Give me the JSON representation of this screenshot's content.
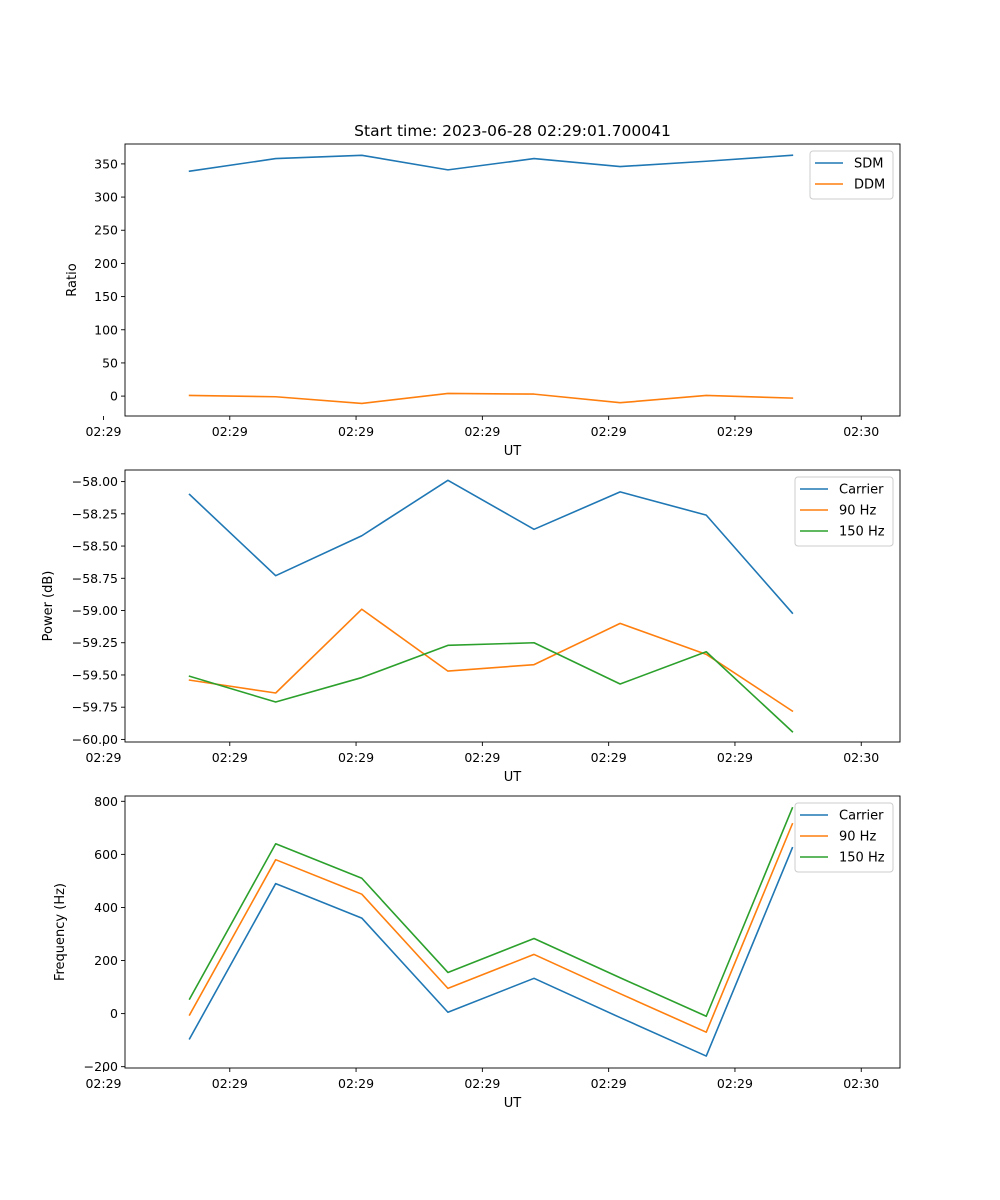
{
  "figure": {
    "title": "Start time: 2023-06-28 02:29:01.700041"
  },
  "colors": {
    "blue": "#1f77b4",
    "orange": "#ff7f0e",
    "green": "#2ca02c"
  },
  "chart_data": [
    {
      "type": "line",
      "id": "ratio",
      "title": "Start time: 2023-06-28 02:29:01.700041",
      "xlabel": "UT",
      "ylabel": "Ratio",
      "x_tick_labels": [
        "02:29",
        "02:29",
        "02:29",
        "02:29",
        "02:29",
        "02:29",
        "02:30"
      ],
      "x": [
        1,
        2,
        3,
        4,
        5,
        6,
        7,
        8
      ],
      "xlim": [
        0.25,
        9.25
      ],
      "ylim": [
        -30,
        380
      ],
      "y_ticks": [
        0,
        50,
        100,
        150,
        200,
        250,
        300,
        350
      ],
      "y_tick_labels": [
        "0",
        "50",
        "100",
        "150",
        "200",
        "250",
        "300",
        "350"
      ],
      "legend": "top-right",
      "grid": false,
      "series": [
        {
          "name": "SDM",
          "color": "#1f77b4",
          "values": [
            339,
            358,
            363,
            341,
            358,
            346,
            354,
            363
          ]
        },
        {
          "name": "DDM",
          "color": "#ff7f0e",
          "values": [
            1,
            -1,
            -11,
            4,
            3,
            -10,
            1,
            -3
          ]
        }
      ]
    },
    {
      "type": "line",
      "id": "power",
      "xlabel": "UT",
      "ylabel": "Power (dB)",
      "x_tick_labels": [
        "02:29",
        "02:29",
        "02:29",
        "02:29",
        "02:29",
        "02:29",
        "02:30"
      ],
      "x": [
        1,
        2,
        3,
        4,
        5,
        6,
        7,
        8
      ],
      "xlim": [
        0.25,
        9.25
      ],
      "ylim": [
        -60.02,
        -57.91
      ],
      "y_ticks": [
        -60.0,
        -59.75,
        -59.5,
        -59.25,
        -59.0,
        -58.75,
        -58.5,
        -58.25,
        -58.0
      ],
      "y_tick_labels": [
        "−60.00",
        "−59.75",
        "−59.50",
        "−59.25",
        "−59.00",
        "−58.75",
        "−58.50",
        "−58.25",
        "−58.00"
      ],
      "legend": "top-right",
      "grid": false,
      "series": [
        {
          "name": "Carrier",
          "color": "#1f77b4",
          "values": [
            -58.1,
            -58.73,
            -58.42,
            -57.99,
            -58.37,
            -58.08,
            -58.26,
            -59.02
          ]
        },
        {
          "name": "90 Hz",
          "color": "#ff7f0e",
          "values": [
            -59.54,
            -59.64,
            -58.99,
            -59.47,
            -59.42,
            -59.1,
            -59.34,
            -59.78
          ]
        },
        {
          "name": "150 Hz",
          "color": "#2ca02c",
          "values": [
            -59.51,
            -59.71,
            -59.52,
            -59.27,
            -59.25,
            -59.57,
            -59.32,
            -59.94
          ]
        }
      ]
    },
    {
      "type": "line",
      "id": "frequency",
      "xlabel": "UT",
      "ylabel": "Frequency (Hz)",
      "x_tick_labels": [
        "02:29",
        "02:29",
        "02:29",
        "02:29",
        "02:29",
        "02:29",
        "02:30"
      ],
      "x": [
        1,
        2,
        3,
        4,
        5,
        6,
        7,
        8
      ],
      "xlim": [
        0.25,
        9.25
      ],
      "ylim": [
        -205,
        820
      ],
      "y_ticks": [
        -200,
        0,
        200,
        400,
        600,
        800
      ],
      "y_tick_labels": [
        "−200",
        "0",
        "200",
        "400",
        "600",
        "800"
      ],
      "legend": "top-right",
      "grid": false,
      "series": [
        {
          "name": "Carrier",
          "color": "#1f77b4",
          "values": [
            -95,
            490,
            360,
            5,
            133,
            -15,
            -160,
            625
          ]
        },
        {
          "name": "90 Hz",
          "color": "#ff7f0e",
          "values": [
            -5,
            580,
            450,
            95,
            223,
            75,
            -70,
            715
          ]
        },
        {
          "name": "150 Hz",
          "color": "#2ca02c",
          "values": [
            55,
            640,
            510,
            155,
            283,
            135,
            -10,
            775
          ]
        }
      ]
    }
  ]
}
